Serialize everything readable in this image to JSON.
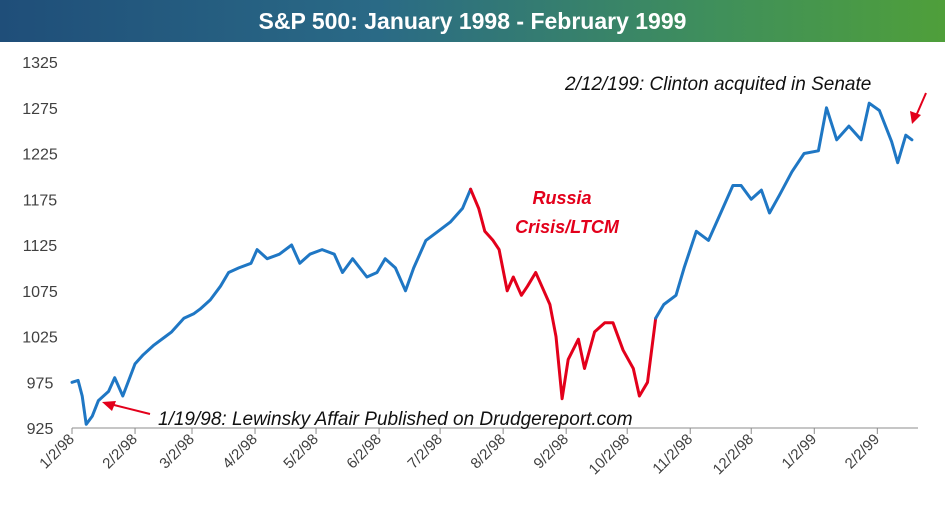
{
  "chart_data": {
    "type": "line",
    "title": "S&P 500: January 1998 - February 1999",
    "xlabel": "",
    "ylabel": "",
    "ylim": [
      925,
      1325
    ],
    "yticks": [
      "925",
      "975",
      "1025",
      "1075",
      "1125",
      "1175",
      "1225",
      "1275",
      "1325"
    ],
    "xticks": [
      "1/2/98",
      "2/2/98",
      "3/2/98",
      "4/2/98",
      "5/2/98",
      "6/2/98",
      "7/2/98",
      "8/2/98",
      "9/2/98",
      "10/2/98",
      "11/2/98",
      "12/2/98",
      "1/2/99",
      "2/2/99"
    ],
    "grid": false,
    "legend": "none",
    "colors": {
      "main": "#1f77c4",
      "highlight": "#e3001b"
    },
    "series": [
      {
        "color": "#1f77c4",
        "x": [
          "1998-01-02",
          "1998-01-05",
          "1998-01-07",
          "1998-01-09",
          "1998-01-12",
          "1998-01-15",
          "1998-01-20",
          "1998-01-23",
          "1998-01-27",
          "1998-02-02",
          "1998-02-06",
          "1998-02-11",
          "1998-02-17",
          "1998-02-20",
          "1998-02-26",
          "1998-03-03",
          "1998-03-06",
          "1998-03-11",
          "1998-03-16",
          "1998-03-20",
          "1998-03-25",
          "1998-03-31",
          "1998-04-03",
          "1998-04-08",
          "1998-04-14",
          "1998-04-20",
          "1998-04-24",
          "1998-04-29",
          "1998-05-05",
          "1998-05-11",
          "1998-05-15",
          "1998-05-20",
          "1998-05-27",
          "1998-06-01",
          "1998-06-05",
          "1998-06-10",
          "1998-06-15",
          "1998-06-19",
          "1998-06-25",
          "1998-07-01",
          "1998-07-07",
          "1998-07-13",
          "1998-07-17"
        ],
        "y": [
          975,
          977,
          960,
          929,
          938,
          955,
          965,
          980,
          960,
          995,
          1005,
          1015,
          1025,
          1030,
          1045,
          1050,
          1055,
          1065,
          1080,
          1095,
          1100,
          1105,
          1120,
          1110,
          1115,
          1125,
          1105,
          1115,
          1120,
          1115,
          1095,
          1110,
          1090,
          1095,
          1110,
          1100,
          1075,
          1100,
          1130,
          1140,
          1150,
          1165,
          1186
        ]
      },
      {
        "color": "#e3001b",
        "x": [
          "1998-07-17",
          "1998-07-21",
          "1998-07-24",
          "1998-07-28",
          "1998-07-31",
          "1998-08-04",
          "1998-08-07",
          "1998-08-11",
          "1998-08-14",
          "1998-08-18",
          "1998-08-21",
          "1998-08-25",
          "1998-08-28",
          "1998-08-31",
          "1998-09-03",
          "1998-09-08",
          "1998-09-11",
          "1998-09-16",
          "1998-09-21",
          "1998-09-25",
          "1998-09-30",
          "1998-10-05",
          "1998-10-08",
          "1998-10-12",
          "1998-10-16"
        ],
        "y": [
          1186,
          1165,
          1140,
          1130,
          1120,
          1075,
          1090,
          1070,
          1080,
          1095,
          1080,
          1060,
          1025,
          957,
          1000,
          1022,
          990,
          1030,
          1040,
          1040,
          1010,
          990,
          960,
          975,
          1045
        ]
      },
      {
        "color": "#1f77c4",
        "x": [
          "1998-10-16",
          "1998-10-20",
          "1998-10-26",
          "1998-10-30",
          "1998-11-05",
          "1998-11-11",
          "1998-11-17",
          "1998-11-23",
          "1998-11-27",
          "1998-12-02",
          "1998-12-07",
          "1998-12-11",
          "1998-12-16",
          "1998-12-22",
          "1998-12-28",
          "1999-01-04",
          "1999-01-08",
          "1999-01-13",
          "1999-01-19",
          "1999-01-25",
          "1999-01-29",
          "1999-02-03",
          "1999-02-09",
          "1999-02-12",
          "1999-02-16",
          "1999-02-19"
        ],
        "y": [
          1045,
          1060,
          1070,
          1100,
          1140,
          1130,
          1160,
          1190,
          1190,
          1175,
          1185,
          1160,
          1180,
          1205,
          1225,
          1228,
          1275,
          1240,
          1255,
          1240,
          1280,
          1272,
          1238,
          1215,
          1245,
          1240
        ]
      }
    ],
    "annotations": [
      {
        "text": "1/19/98: Lewinsky Affair Published on Drudgereport.com",
        "x": "1998-01-19",
        "y": 950,
        "color": "#111111"
      },
      {
        "text": "Russia",
        "color": "#e3001b"
      },
      {
        "text": "Crisis/LTCM",
        "color": "#e3001b"
      },
      {
        "text": "2/12/199: Clinton acquited in Senate",
        "x": "1999-02-12",
        "y": 1255,
        "color": "#111111"
      }
    ]
  }
}
